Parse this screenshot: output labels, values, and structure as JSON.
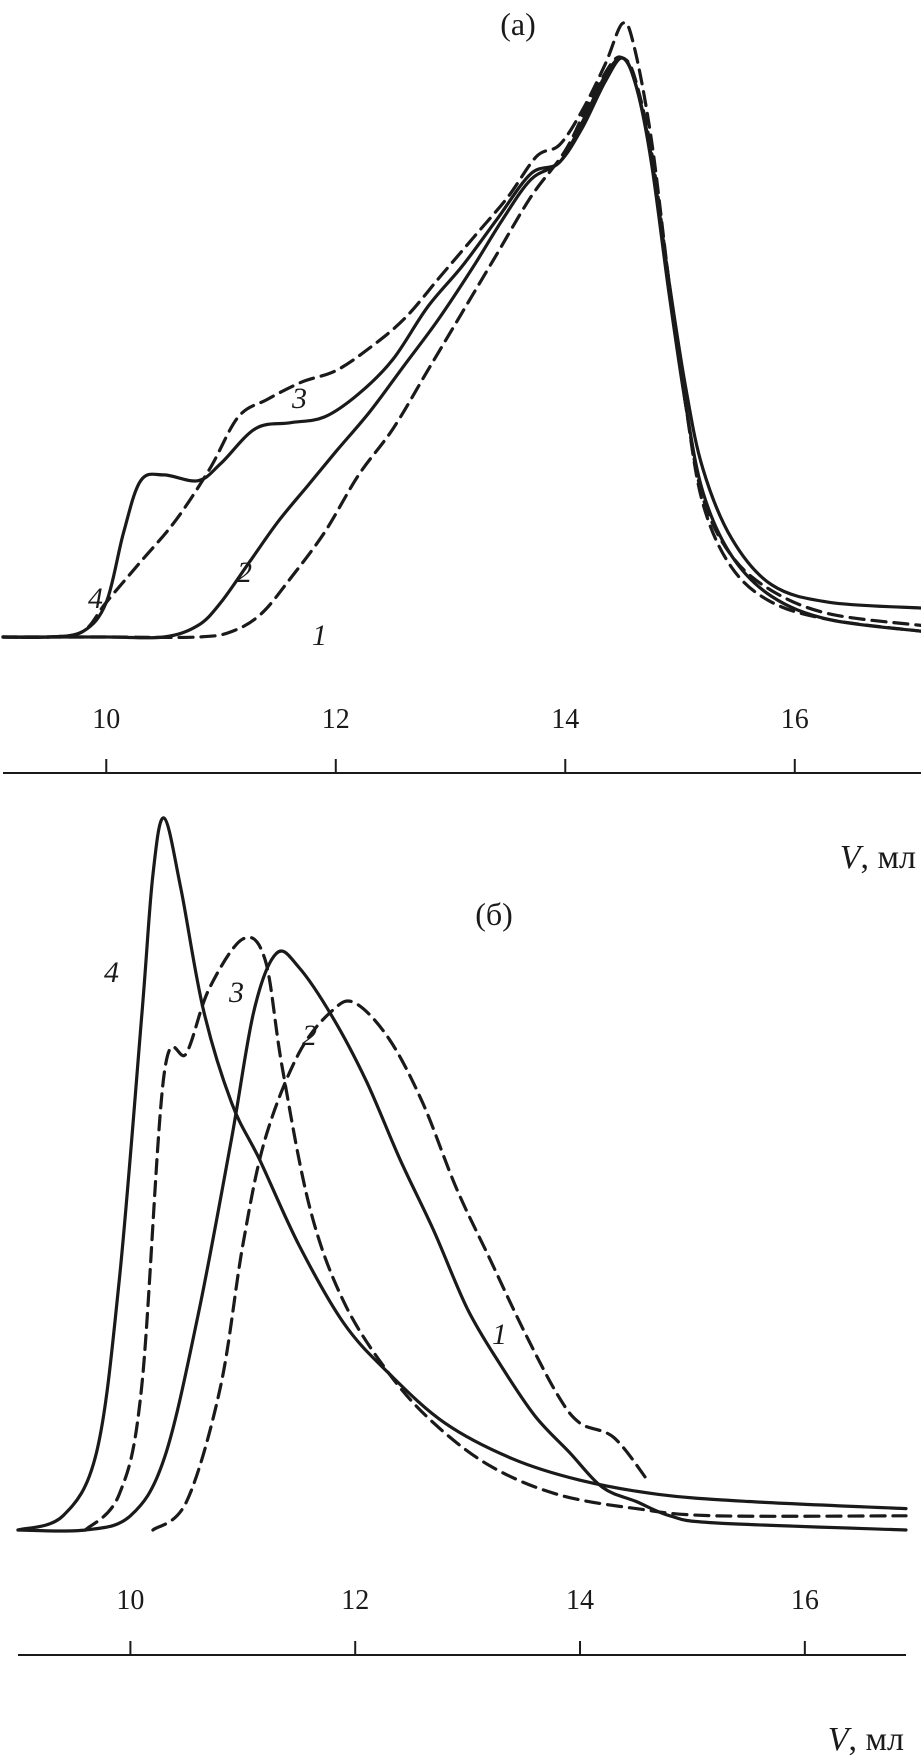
{
  "chart_data": [
    {
      "type": "line",
      "panel_label": "(а)",
      "xlabel_var": "V",
      "xlabel_unit": ", мл",
      "xlim": [
        9.1,
        17.1
      ],
      "ylim": [
        0,
        1
      ],
      "x_ticks": [
        10,
        12,
        14,
        16
      ],
      "x_tick_labels": [
        "10",
        "12",
        "14",
        "16"
      ],
      "grid": false,
      "legend": "none",
      "series": [
        {
          "label": "1",
          "style": "dashed",
          "points": [
            [
              9.1,
              0.0
            ],
            [
              10.0,
              0.0
            ],
            [
              10.8,
              0.0
            ],
            [
              11.1,
              0.01
            ],
            [
              11.35,
              0.04
            ],
            [
              11.6,
              0.1
            ],
            [
              11.9,
              0.18
            ],
            [
              12.2,
              0.28
            ],
            [
              12.5,
              0.36
            ],
            [
              12.8,
              0.46
            ],
            [
              13.1,
              0.56
            ],
            [
              13.4,
              0.66
            ],
            [
              13.7,
              0.76
            ],
            [
              14.0,
              0.84
            ],
            [
              14.2,
              0.92
            ],
            [
              14.4,
              0.99
            ],
            [
              14.5,
              1.0
            ],
            [
              14.6,
              0.97
            ],
            [
              14.75,
              0.84
            ],
            [
              14.9,
              0.62
            ],
            [
              15.05,
              0.4
            ],
            [
              15.2,
              0.24
            ],
            [
              15.45,
              0.14
            ],
            [
              15.8,
              0.08
            ],
            [
              16.3,
              0.04
            ],
            [
              17.1,
              0.02
            ]
          ]
        },
        {
          "label": "2",
          "style": "solid",
          "points": [
            [
              9.1,
              0.0
            ],
            [
              10.0,
              0.0
            ],
            [
              10.5,
              0.0
            ],
            [
              10.8,
              0.02
            ],
            [
              11.0,
              0.06
            ],
            [
              11.25,
              0.13
            ],
            [
              11.5,
              0.2
            ],
            [
              11.75,
              0.26
            ],
            [
              12.0,
              0.32
            ],
            [
              12.3,
              0.39
            ],
            [
              12.6,
              0.47
            ],
            [
              12.9,
              0.55
            ],
            [
              13.2,
              0.64
            ],
            [
              13.45,
              0.72
            ],
            [
              13.7,
              0.79
            ],
            [
              13.95,
              0.82
            ],
            [
              14.15,
              0.88
            ],
            [
              14.35,
              0.96
            ],
            [
              14.5,
              1.0
            ],
            [
              14.62,
              0.95
            ],
            [
              14.75,
              0.82
            ],
            [
              14.9,
              0.6
            ],
            [
              15.05,
              0.4
            ],
            [
              15.2,
              0.25
            ],
            [
              15.45,
              0.14
            ],
            [
              15.8,
              0.07
            ],
            [
              16.3,
              0.03
            ],
            [
              17.1,
              0.01
            ]
          ]
        },
        {
          "label": "3",
          "style": "dashed",
          "points": [
            [
              9.1,
              0.0
            ],
            [
              9.5,
              0.0
            ],
            [
              9.8,
              0.01
            ],
            [
              10.0,
              0.06
            ],
            [
              10.3,
              0.13
            ],
            [
              10.6,
              0.2
            ],
            [
              10.9,
              0.29
            ],
            [
              11.15,
              0.38
            ],
            [
              11.4,
              0.41
            ],
            [
              11.7,
              0.44
            ],
            [
              12.0,
              0.46
            ],
            [
              12.3,
              0.5
            ],
            [
              12.6,
              0.55
            ],
            [
              12.9,
              0.62
            ],
            [
              13.2,
              0.69
            ],
            [
              13.5,
              0.76
            ],
            [
              13.75,
              0.83
            ],
            [
              13.95,
              0.85
            ],
            [
              14.15,
              0.91
            ],
            [
              14.35,
              0.99
            ],
            [
              14.5,
              1.06
            ],
            [
              14.6,
              1.02
            ],
            [
              14.75,
              0.86
            ],
            [
              14.9,
              0.62
            ],
            [
              15.05,
              0.4
            ],
            [
              15.2,
              0.23
            ],
            [
              15.45,
              0.12
            ],
            [
              15.8,
              0.06
            ],
            [
              16.3,
              0.03
            ],
            [
              17.1,
              0.01
            ]
          ]
        },
        {
          "label": "4",
          "style": "solid",
          "points": [
            [
              9.1,
              0.0
            ],
            [
              9.5,
              0.0
            ],
            [
              9.8,
              0.01
            ],
            [
              10.0,
              0.06
            ],
            [
              10.15,
              0.18
            ],
            [
              10.3,
              0.27
            ],
            [
              10.5,
              0.28
            ],
            [
              10.8,
              0.27
            ],
            [
              11.0,
              0.3
            ],
            [
              11.3,
              0.36
            ],
            [
              11.6,
              0.37
            ],
            [
              11.9,
              0.38
            ],
            [
              12.2,
              0.42
            ],
            [
              12.5,
              0.48
            ],
            [
              12.8,
              0.57
            ],
            [
              13.1,
              0.64
            ],
            [
              13.4,
              0.72
            ],
            [
              13.7,
              0.8
            ],
            [
              13.95,
              0.82
            ],
            [
              14.15,
              0.89
            ],
            [
              14.35,
              0.97
            ],
            [
              14.5,
              1.0
            ],
            [
              14.62,
              0.95
            ],
            [
              14.75,
              0.83
            ],
            [
              14.9,
              0.62
            ],
            [
              15.05,
              0.43
            ],
            [
              15.2,
              0.29
            ],
            [
              15.45,
              0.17
            ],
            [
              15.8,
              0.09
            ],
            [
              16.3,
              0.06
            ],
            [
              17.1,
              0.05
            ]
          ]
        }
      ]
    },
    {
      "type": "line",
      "panel_label": "(б)",
      "xlabel_var": "V",
      "xlabel_unit": ", мл",
      "xlim": [
        9.0,
        16.9
      ],
      "ylim": [
        0,
        1
      ],
      "x_ticks": [
        10,
        12,
        14,
        16
      ],
      "x_tick_labels": [
        "10",
        "12",
        "14",
        "16"
      ],
      "grid": false,
      "legend": "none",
      "series": [
        {
          "label": "1",
          "style": "dashed",
          "points": [
            [
              10.2,
              0.0
            ],
            [
              10.5,
              0.04
            ],
            [
              10.8,
              0.2
            ],
            [
              11.0,
              0.4
            ],
            [
              11.2,
              0.55
            ],
            [
              11.5,
              0.67
            ],
            [
              11.8,
              0.73
            ],
            [
              12.0,
              0.74
            ],
            [
              12.3,
              0.69
            ],
            [
              12.6,
              0.6
            ],
            [
              12.9,
              0.48
            ],
            [
              13.2,
              0.38
            ],
            [
              13.5,
              0.28
            ],
            [
              13.8,
              0.19
            ],
            [
              14.0,
              0.15
            ],
            [
              14.3,
              0.13
            ],
            [
              14.6,
              0.07
            ]
          ]
        },
        {
          "label": "2",
          "style": "solid",
          "points": [
            [
              9.0,
              0.0
            ],
            [
              9.6,
              0.0
            ],
            [
              10.0,
              0.02
            ],
            [
              10.3,
              0.1
            ],
            [
              10.6,
              0.3
            ],
            [
              10.9,
              0.55
            ],
            [
              11.1,
              0.73
            ],
            [
              11.3,
              0.81
            ],
            [
              11.5,
              0.79
            ],
            [
              11.8,
              0.72
            ],
            [
              12.1,
              0.63
            ],
            [
              12.4,
              0.52
            ],
            [
              12.7,
              0.42
            ],
            [
              13.0,
              0.31
            ],
            [
              13.3,
              0.23
            ],
            [
              13.6,
              0.16
            ],
            [
              13.9,
              0.11
            ],
            [
              14.2,
              0.06
            ],
            [
              14.5,
              0.04
            ],
            [
              14.8,
              0.02
            ],
            [
              15.2,
              0.01
            ],
            [
              16.9,
              0.0
            ]
          ]
        },
        {
          "label": "3",
          "style": "dashed",
          "points": [
            [
              9.6,
              0.0
            ],
            [
              9.9,
              0.05
            ],
            [
              10.1,
              0.2
            ],
            [
              10.3,
              0.64
            ],
            [
              10.5,
              0.67
            ],
            [
              10.7,
              0.76
            ],
            [
              11.0,
              0.83
            ],
            [
              11.2,
              0.8
            ],
            [
              11.35,
              0.65
            ],
            [
              11.6,
              0.45
            ],
            [
              11.9,
              0.32
            ],
            [
              12.3,
              0.22
            ],
            [
              12.7,
              0.15
            ],
            [
              13.2,
              0.09
            ],
            [
              13.8,
              0.05
            ],
            [
              14.5,
              0.03
            ],
            [
              15.2,
              0.02
            ],
            [
              16.9,
              0.02
            ]
          ]
        },
        {
          "label": "4",
          "style": "solid",
          "points": [
            [
              9.0,
              0.0
            ],
            [
              9.4,
              0.02
            ],
            [
              9.7,
              0.11
            ],
            [
              9.9,
              0.35
            ],
            [
              10.1,
              0.72
            ],
            [
              10.2,
              0.92
            ],
            [
              10.3,
              1.0
            ],
            [
              10.45,
              0.9
            ],
            [
              10.65,
              0.73
            ],
            [
              10.9,
              0.6
            ],
            [
              11.15,
              0.52
            ],
            [
              11.5,
              0.4
            ],
            [
              11.9,
              0.29
            ],
            [
              12.3,
              0.22
            ],
            [
              12.8,
              0.15
            ],
            [
              13.4,
              0.1
            ],
            [
              14.0,
              0.07
            ],
            [
              14.7,
              0.05
            ],
            [
              15.5,
              0.04
            ],
            [
              16.9,
              0.03
            ]
          ]
        }
      ]
    }
  ],
  "curve_label_positions_note": ""
}
